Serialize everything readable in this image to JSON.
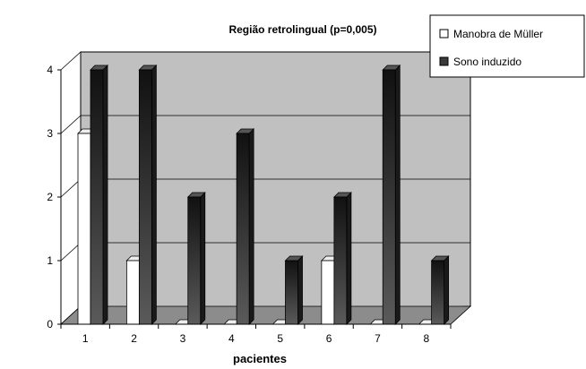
{
  "chart_data": {
    "type": "bar",
    "title": "Região retrolingual   (p=0,005)",
    "xlabel": "pacientes",
    "ylabel": "",
    "categories": [
      "1",
      "2",
      "3",
      "4",
      "5",
      "6",
      "7",
      "8"
    ],
    "yticks": [
      "0",
      "1",
      "2",
      "3",
      "4"
    ],
    "ylim": [
      0,
      4
    ],
    "grid": true,
    "legend_position": "top-right",
    "series": [
      {
        "name": "Manobra de Müller",
        "values": [
          3,
          1,
          0,
          0,
          0,
          1,
          0,
          0
        ],
        "color": "#ffffff"
      },
      {
        "name": "Sono induzido",
        "values": [
          4,
          4,
          2,
          3,
          1,
          2,
          4,
          1
        ],
        "color": "#3a3a3a"
      }
    ],
    "colors": {
      "wall": "#c0c0c0",
      "floor": "#8c8c8c",
      "gridline": "#000000"
    }
  }
}
